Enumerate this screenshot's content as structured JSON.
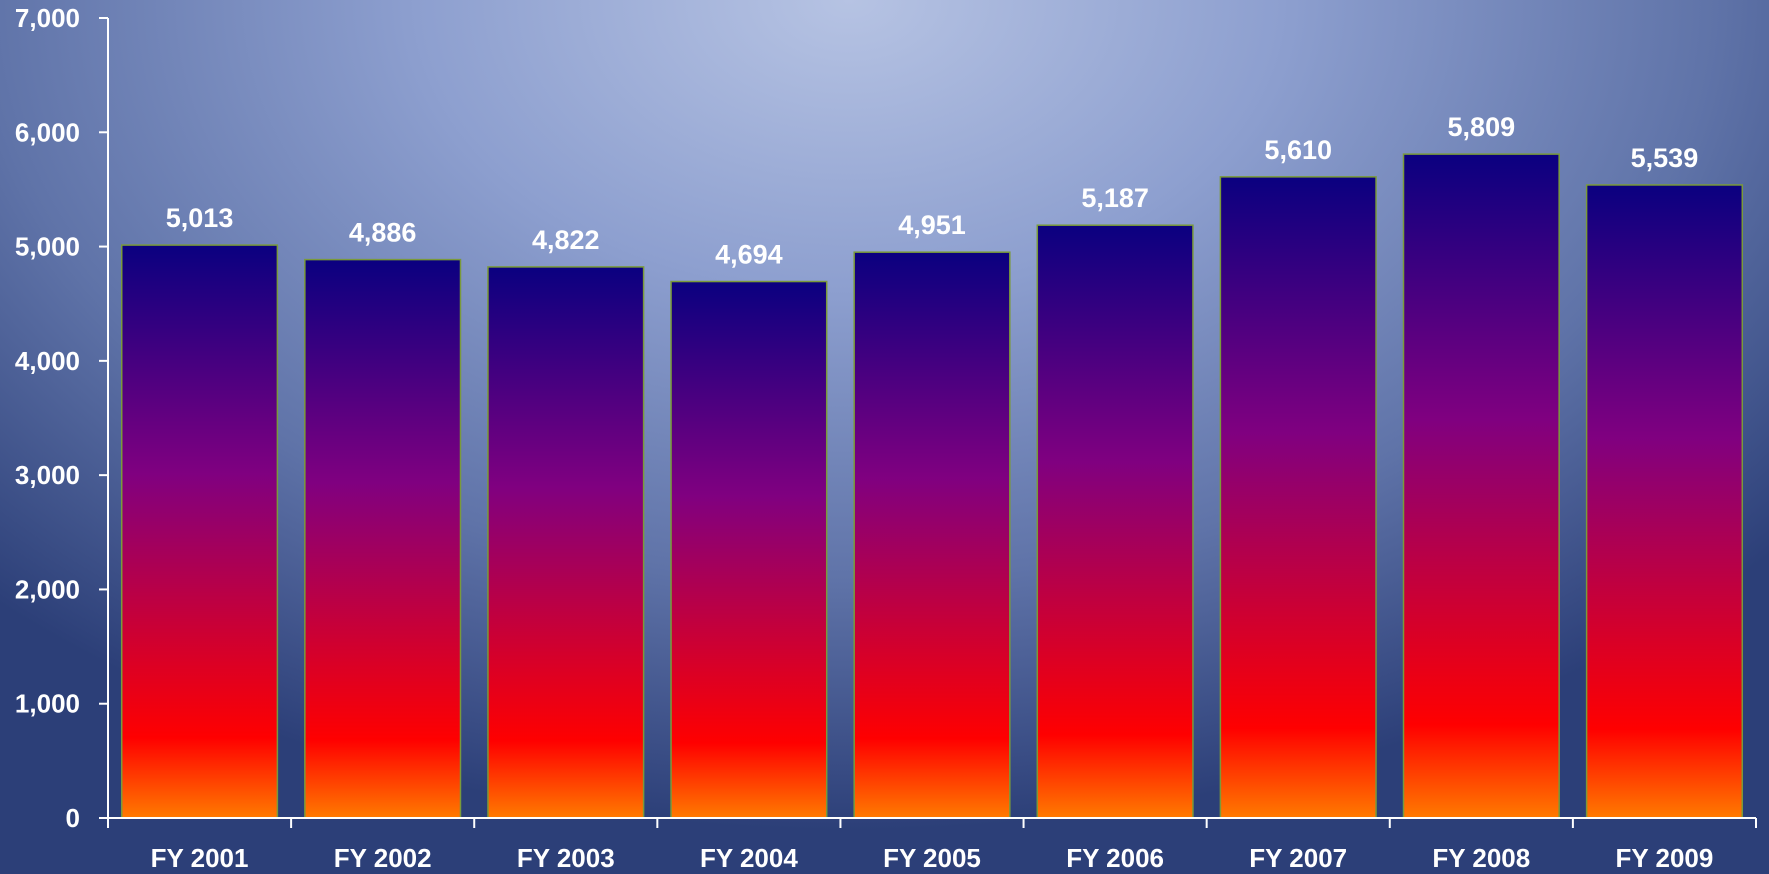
{
  "chart_data": {
    "type": "bar",
    "categories": [
      "FY 2001",
      "FY 2002",
      "FY 2003",
      "FY 2004",
      "FY 2005",
      "FY 2006",
      "FY 2007",
      "FY 2008",
      "FY 2009"
    ],
    "values": [
      5013,
      4886,
      4822,
      4694,
      4951,
      5187,
      5610,
      5809,
      5539
    ],
    "value_labels": [
      "5,013",
      "4,886",
      "4,822",
      "4,694",
      "4,951",
      "5,187",
      "5,610",
      "5,809",
      "5,539"
    ],
    "y_ticks": [
      0,
      1000,
      2000,
      3000,
      4000,
      5000,
      6000,
      7000
    ],
    "y_tick_labels": [
      "0",
      "1,000",
      "2,000",
      "3,000",
      "4,000",
      "5,000",
      "6,000",
      "7,000"
    ],
    "ylim": [
      0,
      7000
    ],
    "title": "",
    "xlabel": "",
    "ylabel": "",
    "grid": false,
    "legend": "none",
    "colors": {
      "bar_top": "#0a0080",
      "bar_mid": "#800080",
      "bar_low": "#ff0000",
      "bar_bottom": "#ff7a00",
      "bar_border": "#7a9a3a",
      "axis": "#ffffff",
      "text": "#ffffff"
    }
  }
}
